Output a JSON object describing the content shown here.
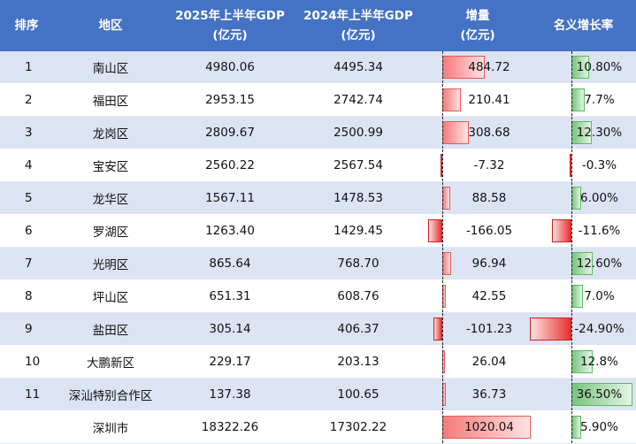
{
  "headers": {
    "rank": "排序",
    "district": "地区",
    "gdp2025": [
      "2025年上半年GDP",
      "(亿元)"
    ],
    "gdp2024": [
      "2024年上半年GDP",
      "(亿元)"
    ],
    "increase": [
      "增量",
      "(亿元)"
    ],
    "rate": "名义增长率"
  },
  "colors": {
    "header_bg": "#4472c4",
    "stripe": "#dce3f3",
    "positive_increase_bar": "#f47b7b",
    "negative_bar": "#e82f2f",
    "positive_rate_bar": "#78c47e"
  },
  "rows": [
    {
      "rank": "1",
      "district": "南山区",
      "gdp2025": "4980.06",
      "gdp2024": "4495.34",
      "increase": "484.72",
      "increase_value": 484.72,
      "rate": "10.80%",
      "rate_value": 10.8
    },
    {
      "rank": "2",
      "district": "福田区",
      "gdp2025": "2953.15",
      "gdp2024": "2742.74",
      "increase": "210.41",
      "increase_value": 210.41,
      "rate": "7.7%",
      "rate_value": 7.7
    },
    {
      "rank": "3",
      "district": "龙岗区",
      "gdp2025": "2809.67",
      "gdp2024": "2500.99",
      "increase": "308.68",
      "increase_value": 308.68,
      "rate": "12.30%",
      "rate_value": 12.3
    },
    {
      "rank": "4",
      "district": "宝安区",
      "gdp2025": "2560.22",
      "gdp2024": "2567.54",
      "increase": "-7.32",
      "increase_value": -7.32,
      "rate": "-0.3%",
      "rate_value": -0.3
    },
    {
      "rank": "5",
      "district": "龙华区",
      "gdp2025": "1567.11",
      "gdp2024": "1478.53",
      "increase": "88.58",
      "increase_value": 88.58,
      "rate": "6.00%",
      "rate_value": 6.0
    },
    {
      "rank": "6",
      "district": "罗湖区",
      "gdp2025": "1263.40",
      "gdp2024": "1429.45",
      "increase": "-166.05",
      "increase_value": -166.05,
      "rate": "-11.6%",
      "rate_value": -11.6
    },
    {
      "rank": "7",
      "district": "光明区",
      "gdp2025": "865.64",
      "gdp2024": "768.70",
      "increase": "96.94",
      "increase_value": 96.94,
      "rate": "12.60%",
      "rate_value": 12.6
    },
    {
      "rank": "8",
      "district": "坪山区",
      "gdp2025": "651.31",
      "gdp2024": "608.76",
      "increase": "42.55",
      "increase_value": 42.55,
      "rate": "7.0%",
      "rate_value": 7.0
    },
    {
      "rank": "9",
      "district": "盐田区",
      "gdp2025": "305.14",
      "gdp2024": "406.37",
      "increase": "-101.23",
      "increase_value": -101.23,
      "rate": "-24.90%",
      "rate_value": -24.9
    },
    {
      "rank": "10",
      "district": "大鹏新区",
      "gdp2025": "229.17",
      "gdp2024": "203.13",
      "increase": "26.04",
      "increase_value": 26.04,
      "rate": "12.8%",
      "rate_value": 12.8
    },
    {
      "rank": "11",
      "district": "深汕特别合作区",
      "gdp2025": "137.38",
      "gdp2024": "100.65",
      "increase": "36.73",
      "increase_value": 36.73,
      "rate": "36.50%",
      "rate_value": 36.5
    },
    {
      "rank": "",
      "district": "深圳市",
      "gdp2025": "18322.26",
      "gdp2024": "17302.22",
      "increase": "1020.04",
      "increase_value": 1020.04,
      "rate": "5.90%",
      "rate_value": 5.9
    }
  ]
}
